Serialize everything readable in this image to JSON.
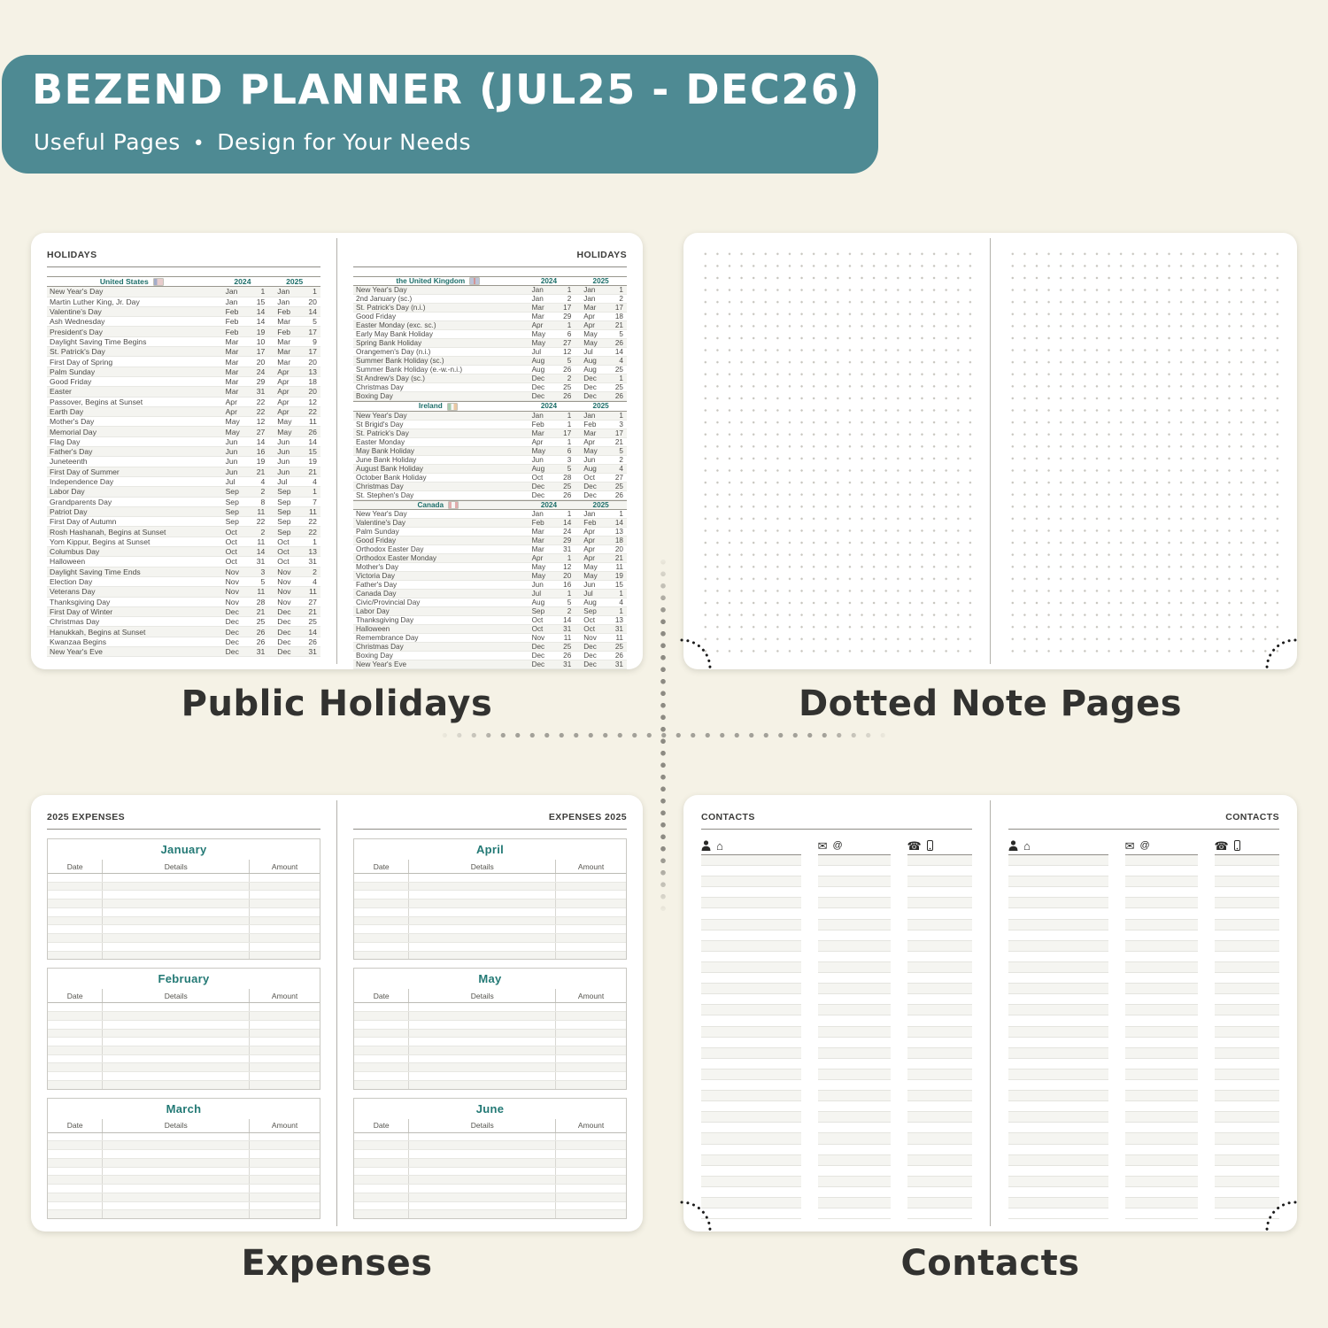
{
  "banner": {
    "title": "BEZEND PLANNER (JUL25 - DEC26)",
    "subtitle_left": "Useful Pages",
    "bullet": "•",
    "subtitle_right": "Design for Your Needs",
    "bg_color": "#4e8a93",
    "text_color": "#ffffff"
  },
  "colors": {
    "background": "#f5f2e6",
    "accent_teal": "#1e6f6a",
    "page_white": "#ffffff",
    "caption_text": "#323230"
  },
  "captions": {
    "holidays": "Public Holidays",
    "dotted": "Dotted Note Pages",
    "expenses": "Expenses",
    "contacts": "Contacts"
  },
  "holidays": {
    "page_title": "HOLIDAYS",
    "year_headers": [
      "2024",
      "2025"
    ],
    "left_sections": [
      {
        "country": "United States",
        "flag": "us",
        "rows": [
          [
            "New Year's Day",
            "Jan",
            "1",
            "Jan",
            "1"
          ],
          [
            "Martin Luther King, Jr. Day",
            "Jan",
            "15",
            "Jan",
            "20"
          ],
          [
            "Valentine's Day",
            "Feb",
            "14",
            "Feb",
            "14"
          ],
          [
            "Ash Wednesday",
            "Feb",
            "14",
            "Mar",
            "5"
          ],
          [
            "President's Day",
            "Feb",
            "19",
            "Feb",
            "17"
          ],
          [
            "Daylight Saving Time Begins",
            "Mar",
            "10",
            "Mar",
            "9"
          ],
          [
            "St. Patrick's Day",
            "Mar",
            "17",
            "Mar",
            "17"
          ],
          [
            "First Day of Spring",
            "Mar",
            "20",
            "Mar",
            "20"
          ],
          [
            "Palm Sunday",
            "Mar",
            "24",
            "Apr",
            "13"
          ],
          [
            "Good Friday",
            "Mar",
            "29",
            "Apr",
            "18"
          ],
          [
            "Easter",
            "Mar",
            "31",
            "Apr",
            "20"
          ],
          [
            "Passover, Begins at Sunset",
            "Apr",
            "22",
            "Apr",
            "12"
          ],
          [
            "Earth Day",
            "Apr",
            "22",
            "Apr",
            "22"
          ],
          [
            "Mother's Day",
            "May",
            "12",
            "May",
            "11"
          ],
          [
            "Memorial Day",
            "May",
            "27",
            "May",
            "26"
          ],
          [
            "Flag Day",
            "Jun",
            "14",
            "Jun",
            "14"
          ],
          [
            "Father's Day",
            "Jun",
            "16",
            "Jun",
            "15"
          ],
          [
            "Juneteenth",
            "Jun",
            "19",
            "Jun",
            "19"
          ],
          [
            "First Day of Summer",
            "Jun",
            "21",
            "Jun",
            "21"
          ],
          [
            "Independence Day",
            "Jul",
            "4",
            "Jul",
            "4"
          ],
          [
            "Labor Day",
            "Sep",
            "2",
            "Sep",
            "1"
          ],
          [
            "Grandparents Day",
            "Sep",
            "8",
            "Sep",
            "7"
          ],
          [
            "Patriot Day",
            "Sep",
            "11",
            "Sep",
            "11"
          ],
          [
            "First Day of Autumn",
            "Sep",
            "22",
            "Sep",
            "22"
          ],
          [
            "Rosh Hashanah, Begins at Sunset",
            "Oct",
            "2",
            "Sep",
            "22"
          ],
          [
            "Yom Kippur, Begins at Sunset",
            "Oct",
            "11",
            "Oct",
            "1"
          ],
          [
            "Columbus Day",
            "Oct",
            "14",
            "Oct",
            "13"
          ],
          [
            "Halloween",
            "Oct",
            "31",
            "Oct",
            "31"
          ],
          [
            "Daylight Saving Time Ends",
            "Nov",
            "3",
            "Nov",
            "2"
          ],
          [
            "Election Day",
            "Nov",
            "5",
            "Nov",
            "4"
          ],
          [
            "Veterans Day",
            "Nov",
            "11",
            "Nov",
            "11"
          ],
          [
            "Thanksgiving Day",
            "Nov",
            "28",
            "Nov",
            "27"
          ],
          [
            "First Day of Winter",
            "Dec",
            "21",
            "Dec",
            "21"
          ],
          [
            "Christmas Day",
            "Dec",
            "25",
            "Dec",
            "25"
          ],
          [
            "Hanukkah, Begins at Sunset",
            "Dec",
            "26",
            "Dec",
            "14"
          ],
          [
            "Kwanzaa Begins",
            "Dec",
            "26",
            "Dec",
            "26"
          ],
          [
            "New Year's Eve",
            "Dec",
            "31",
            "Dec",
            "31"
          ]
        ]
      }
    ],
    "right_sections": [
      {
        "country": "the United Kingdom",
        "flag": "uk",
        "rows": [
          [
            "New Year's Day",
            "Jan",
            "1",
            "Jan",
            "1"
          ],
          [
            "2nd January (sc.)",
            "Jan",
            "2",
            "Jan",
            "2"
          ],
          [
            "St. Patrick's Day (n.i.)",
            "Mar",
            "17",
            "Mar",
            "17"
          ],
          [
            "Good Friday",
            "Mar",
            "29",
            "Apr",
            "18"
          ],
          [
            "Easter Monday (exc. sc.)",
            "Apr",
            "1",
            "Apr",
            "21"
          ],
          [
            "Early May Bank Holiday",
            "May",
            "6",
            "May",
            "5"
          ],
          [
            "Spring Bank Holiday",
            "May",
            "27",
            "May",
            "26"
          ],
          [
            "Orangemen's Day (n.i.)",
            "Jul",
            "12",
            "Jul",
            "14"
          ],
          [
            "Summer Bank Holiday (sc.)",
            "Aug",
            "5",
            "Aug",
            "4"
          ],
          [
            "Summer Bank Holiday (e.-w.-n.i.)",
            "Aug",
            "26",
            "Aug",
            "25"
          ],
          [
            "St Andrew's Day (sc.)",
            "Dec",
            "2",
            "Dec",
            "1"
          ],
          [
            "Christmas Day",
            "Dec",
            "25",
            "Dec",
            "25"
          ],
          [
            "Boxing Day",
            "Dec",
            "26",
            "Dec",
            "26"
          ]
        ]
      },
      {
        "country": "Ireland",
        "flag": "ie",
        "rows": [
          [
            "New Year's Day",
            "Jan",
            "1",
            "Jan",
            "1"
          ],
          [
            "St Brigid's Day",
            "Feb",
            "1",
            "Feb",
            "3"
          ],
          [
            "St. Patrick's Day",
            "Mar",
            "17",
            "Mar",
            "17"
          ],
          [
            "Easter Monday",
            "Apr",
            "1",
            "Apr",
            "21"
          ],
          [
            "May Bank Holiday",
            "May",
            "6",
            "May",
            "5"
          ],
          [
            "June Bank Holiday",
            "Jun",
            "3",
            "Jun",
            "2"
          ],
          [
            "August Bank Holiday",
            "Aug",
            "5",
            "Aug",
            "4"
          ],
          [
            "October Bank Holiday",
            "Oct",
            "28",
            "Oct",
            "27"
          ],
          [
            "Christmas Day",
            "Dec",
            "25",
            "Dec",
            "25"
          ],
          [
            "St. Stephen's Day",
            "Dec",
            "26",
            "Dec",
            "26"
          ]
        ]
      },
      {
        "country": "Canada",
        "flag": "ca",
        "rows": [
          [
            "New Year's Day",
            "Jan",
            "1",
            "Jan",
            "1"
          ],
          [
            "Valentine's Day",
            "Feb",
            "14",
            "Feb",
            "14"
          ],
          [
            "Palm Sunday",
            "Mar",
            "24",
            "Apr",
            "13"
          ],
          [
            "Good Friday",
            "Mar",
            "29",
            "Apr",
            "18"
          ],
          [
            "Orthodox Easter Day",
            "Mar",
            "31",
            "Apr",
            "20"
          ],
          [
            "Orthodox Easter Monday",
            "Apr",
            "1",
            "Apr",
            "21"
          ],
          [
            "Mother's Day",
            "May",
            "12",
            "May",
            "11"
          ],
          [
            "Victoria Day",
            "May",
            "20",
            "May",
            "19"
          ],
          [
            "Father's Day",
            "Jun",
            "16",
            "Jun",
            "15"
          ],
          [
            "Canada Day",
            "Jul",
            "1",
            "Jul",
            "1"
          ],
          [
            "Civic/Provincial Day",
            "Aug",
            "5",
            "Aug",
            "4"
          ],
          [
            "Labor Day",
            "Sep",
            "2",
            "Sep",
            "1"
          ],
          [
            "Thanksgiving Day",
            "Oct",
            "14",
            "Oct",
            "13"
          ],
          [
            "Halloween",
            "Oct",
            "31",
            "Oct",
            "31"
          ],
          [
            "Remembrance Day",
            "Nov",
            "11",
            "Nov",
            "11"
          ],
          [
            "Christmas Day",
            "Dec",
            "25",
            "Dec",
            "25"
          ],
          [
            "Boxing Day",
            "Dec",
            "26",
            "Dec",
            "26"
          ],
          [
            "New Year's Eve",
            "Dec",
            "31",
            "Dec",
            "31"
          ]
        ]
      }
    ]
  },
  "expenses": {
    "left_label": "2025 EXPENSES",
    "right_label": "EXPENSES 2025",
    "columns": [
      "Date",
      "Details",
      "Amount"
    ],
    "left_months": [
      "January",
      "February",
      "March"
    ],
    "right_months": [
      "April",
      "May",
      "June"
    ],
    "rows_per_month": 10
  },
  "contacts": {
    "label": "CONTACTS",
    "icon_groups": [
      [
        "person-icon",
        "home-icon"
      ],
      [
        "envelope-icon",
        "at-icon"
      ],
      [
        "phone-icon",
        "mobile-icon"
      ]
    ],
    "lines_per_column": 34
  }
}
